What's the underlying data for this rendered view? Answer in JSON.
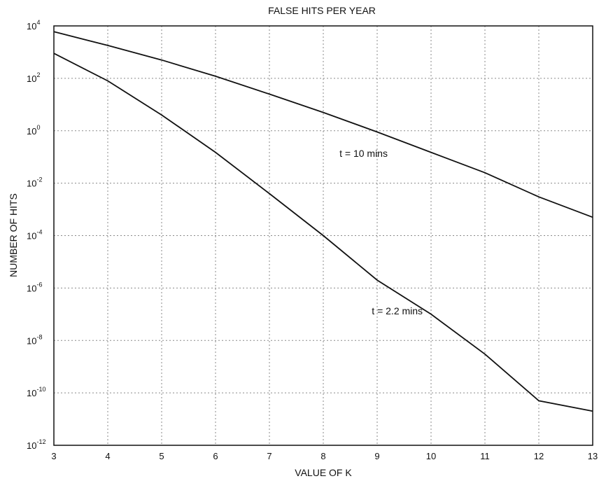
{
  "chart_data": {
    "type": "line",
    "title": "FALSE HITS PER YEAR",
    "xlabel": "VALUE OF K",
    "ylabel": "NUMBER OF HITS",
    "xlim": [
      3,
      13
    ],
    "ylim": [
      1e-12,
      10000.0
    ],
    "yscale": "log",
    "grid": true,
    "x_ticks": [
      "3",
      "4",
      "5",
      "6",
      "7",
      "8",
      "9",
      "10",
      "11",
      "12",
      "13"
    ],
    "y_ticks": [
      {
        "base": "10",
        "exp": "4"
      },
      {
        "base": "10",
        "exp": "2"
      },
      {
        "base": "10",
        "exp": "0"
      },
      {
        "base": "10",
        "exp": "-2"
      },
      {
        "base": "10",
        "exp": "-4"
      },
      {
        "base": "10",
        "exp": "-6"
      },
      {
        "base": "10",
        "exp": "-8"
      },
      {
        "base": "10",
        "exp": "-10"
      },
      {
        "base": "10",
        "exp": "-12"
      }
    ],
    "series": [
      {
        "name": "t = 10 mins",
        "x": [
          3,
          4,
          5,
          6,
          7,
          8,
          9,
          10,
          11,
          12,
          13
        ],
        "y": [
          6000,
          1800,
          500,
          120,
          25,
          5,
          0.9,
          0.15,
          0.025,
          0.003,
          0.0005
        ]
      },
      {
        "name": "t = 2.2 mins",
        "x": [
          3,
          4,
          5,
          6,
          7,
          8,
          9,
          10,
          11,
          12,
          13
        ],
        "y": [
          900,
          80,
          4,
          0.15,
          0.004,
          0.0001,
          2e-06,
          1e-07,
          3e-09,
          5e-11,
          2e-11
        ]
      }
    ]
  }
}
